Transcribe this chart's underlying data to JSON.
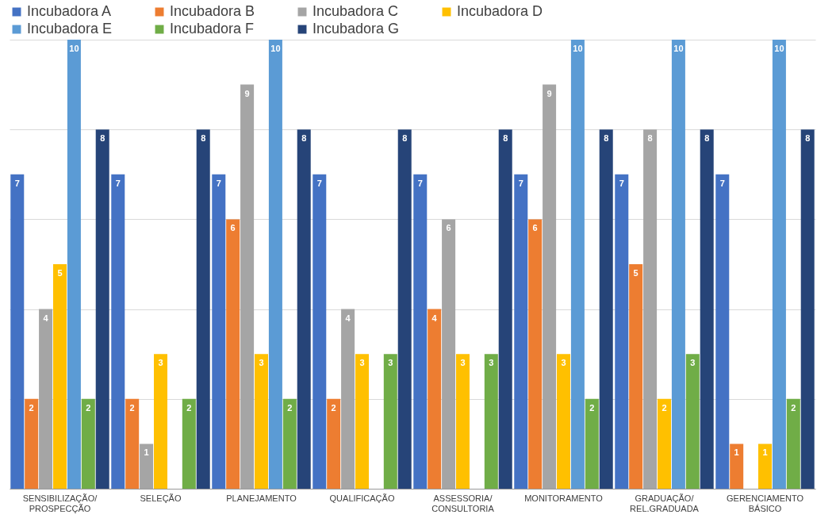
{
  "chart_data": {
    "type": "bar",
    "categories": [
      "SENSIBILIZAÇÃO/PROSPECÇÃO",
      "SELEÇÃO",
      "PLANEJAMENTO",
      "QUALIFICAÇÃO",
      "ASSESSORIA/CONSULTORIA",
      "MONITORAMENTO",
      "GRADUAÇÃO/REL.GRADUADA",
      "GERENCIAMENTO BÁSICO"
    ],
    "series": [
      {
        "name": "Incubadora A",
        "color": "#4472c4",
        "values": [
          7,
          7,
          7,
          7,
          7,
          7,
          7,
          7
        ]
      },
      {
        "name": "Incubadora B",
        "color": "#ed7d31",
        "values": [
          2,
          2,
          6,
          2,
          4,
          6,
          5,
          1
        ]
      },
      {
        "name": "Incubadora C",
        "color": "#a5a5a5",
        "values": [
          4,
          1,
          9,
          4,
          6,
          9,
          8,
          null
        ]
      },
      {
        "name": "Incubadora D",
        "color": "#ffc000",
        "values": [
          5,
          3,
          3,
          3,
          3,
          3,
          2,
          1
        ]
      },
      {
        "name": "Incubadora E",
        "color": "#5b9bd5",
        "values": [
          10,
          null,
          10,
          null,
          null,
          10,
          10,
          10
        ]
      },
      {
        "name": "Incubadora F",
        "color": "#70ad47",
        "values": [
          2,
          2,
          2,
          3,
          3,
          2,
          3,
          2
        ]
      },
      {
        "name": "Incubadora G",
        "color": "#264478",
        "values": [
          8,
          8,
          8,
          8,
          8,
          8,
          8,
          8
        ]
      }
    ],
    "grid": "y",
    "tick_labels": "x",
    "legend": "top",
    "data_labels": true
  }
}
